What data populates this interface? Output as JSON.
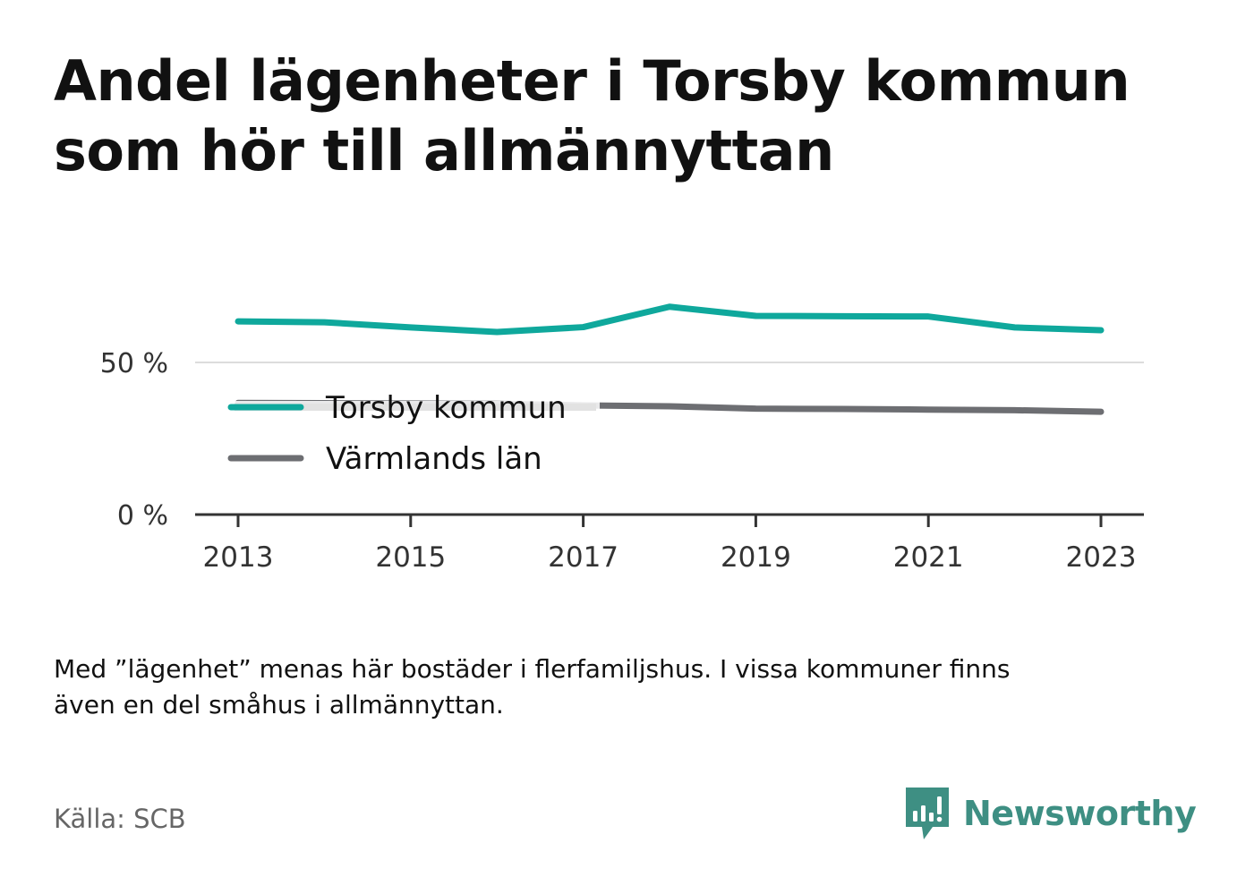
{
  "header": {
    "title_line1": "Andel lägenheter i Torsby kommun",
    "title_line2": "som hör till allmännyttan"
  },
  "chart_data": {
    "type": "line",
    "title": "Andel lägenheter i Torsby kommun som hör till allmännyttan",
    "xlabel": "",
    "ylabel": "",
    "x": [
      2013,
      2014,
      2015,
      2016,
      2017,
      2018,
      2019,
      2020,
      2021,
      2022,
      2023
    ],
    "x_ticks": [
      "2013",
      "2015",
      "2017",
      "2019",
      "2021",
      "2023"
    ],
    "y_ticks": [
      "0 %",
      "50 %"
    ],
    "y_tick_values": [
      0,
      50
    ],
    "ylim": [
      0,
      70
    ],
    "xlim": [
      2012.5,
      2023.5
    ],
    "grid": true,
    "legend_position": "center-left",
    "series": [
      {
        "name": "Torsby kommun",
        "color": "#0fa89c",
        "values": [
          63.5,
          63.2,
          61.5,
          60.0,
          61.6,
          68.3,
          65.3,
          65.2,
          65.1,
          61.5,
          60.6
        ]
      },
      {
        "name": "Värmlands län",
        "color": "#6d6e72",
        "values": [
          36.7,
          36.6,
          36.5,
          36.4,
          35.9,
          35.6,
          34.8,
          34.7,
          34.5,
          34.3,
          33.8
        ]
      }
    ]
  },
  "footnote": {
    "line1": "Med ”lägenhet” menas här bostäder i flerfamiljshus. I vissa kommuner finns",
    "line2": "även en del småhus i allmännyttan."
  },
  "source": {
    "text": "Källa: SCB"
  },
  "brand": {
    "name": "Newsworthy",
    "color": "#3e8f83",
    "icon": "newsworthy-logo-icon"
  }
}
